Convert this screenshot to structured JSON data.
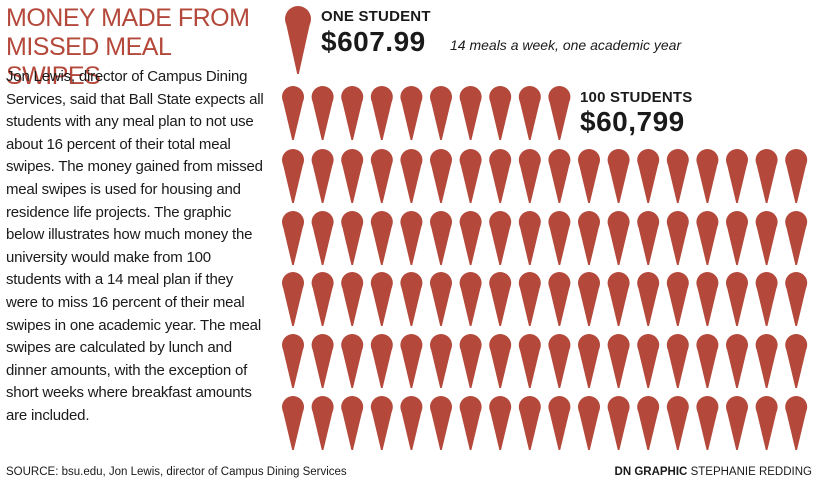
{
  "title": {
    "line1": "MONEY MADE FROM",
    "line2": "MISSED MEAL SWIPES"
  },
  "body": "Jon Lewis, director of Campus Dining Services, said that Ball State expects all students with any meal plan to not use about 16 percent of their total meal swipes. The money gained from missed meal swipes is used for housing and residence life projects. The graphic below illustrates how much money the university would make from 100 students with a 14 meal plan if they were to miss 16 percent of their meal swipes in one academic year. The meal swipes are calculated by lunch and dinner amounts, with the exception of short weeks where breakfast amounts are included.",
  "one_student": {
    "label": "ONE STUDENT",
    "amount": "$607.99",
    "note": "14 meals a week, one academic year"
  },
  "hundred_students": {
    "label": "100 STUDENTS",
    "amount": "$60,799",
    "count": 100
  },
  "source": "SOURCE: bsu.edu, Jon Lewis, director of Campus Dining Services",
  "credit": {
    "brand": "DN GRAPHIC",
    "author": "STEPHANIE REDDING"
  },
  "colors": {
    "cone": "#b4483a",
    "title": "#b4483a",
    "text": "#1a1a1a"
  },
  "icon": "ice-cream-cone-icon"
}
